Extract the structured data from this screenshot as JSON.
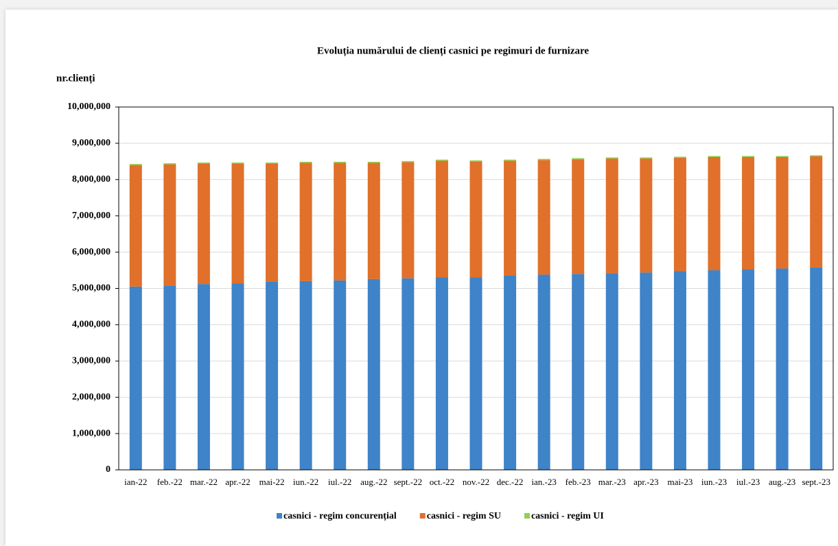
{
  "chart_data": {
    "type": "stacked_bar",
    "title": "Evoluția numărului de clienți casnici pe regimuri de furnizare",
    "y_axis_label": "nr.clienți",
    "categories": [
      "ian-22",
      "feb.-22",
      "mar.-22",
      "apr.-22",
      "mai-22",
      "iun.-22",
      "iul.-22",
      "aug.-22",
      "sept.-22",
      "oct.-22",
      "nov.-22",
      "dec.-22",
      "ian.-23",
      "feb.-23",
      "mar.-23",
      "apr.-23",
      "mai-23",
      "iun.-23",
      "iul.-23",
      "aug.-23",
      "sept.-23"
    ],
    "series": [
      {
        "name": "casnici - regim concurențial",
        "color": "#3f83c8",
        "values": [
          5050000,
          5080000,
          5120000,
          5140000,
          5180000,
          5200000,
          5220000,
          5260000,
          5280000,
          5310000,
          5310000,
          5350000,
          5380000,
          5400000,
          5420000,
          5440000,
          5480000,
          5500000,
          5520000,
          5550000,
          5580000
        ]
      },
      {
        "name": "casnici - regim SU",
        "color": "#e0702a",
        "values": [
          3350000,
          3340000,
          3320000,
          3300000,
          3260000,
          3260000,
          3240000,
          3200000,
          3200000,
          3210000,
          3190000,
          3170000,
          3160000,
          3160000,
          3160000,
          3140000,
          3120000,
          3120000,
          3100000,
          3070000,
          3060000
        ]
      },
      {
        "name": "casnici - regim UI",
        "color": "#92d050",
        "values": [
          30000,
          30000,
          30000,
          30000,
          30000,
          30000,
          30000,
          30000,
          30000,
          30000,
          30000,
          30000,
          30000,
          30000,
          30000,
          30000,
          30000,
          30000,
          30000,
          30000,
          30000
        ]
      }
    ],
    "ylim": [
      0,
      10000000
    ],
    "yticks": [
      0,
      {
        "value": 1000000,
        "label": "1,000,000"
      },
      {
        "value": 2000000,
        "label": "2,000,000"
      },
      {
        "value": 3000000,
        "label": "3,000,000"
      },
      {
        "value": 4000000,
        "label": "4,000,000"
      },
      {
        "value": 5000000,
        "label": "5,000,000"
      },
      {
        "value": 6000000,
        "label": "6,000,000"
      },
      {
        "value": 7000000,
        "label": "7,000,000"
      },
      {
        "value": 8000000,
        "label": "8,000,000"
      },
      {
        "value": 9000000,
        "label": "9,000,000"
      },
      {
        "value": 10000000,
        "label": "10,000,000"
      }
    ],
    "grid": true,
    "legend": "bottom"
  }
}
